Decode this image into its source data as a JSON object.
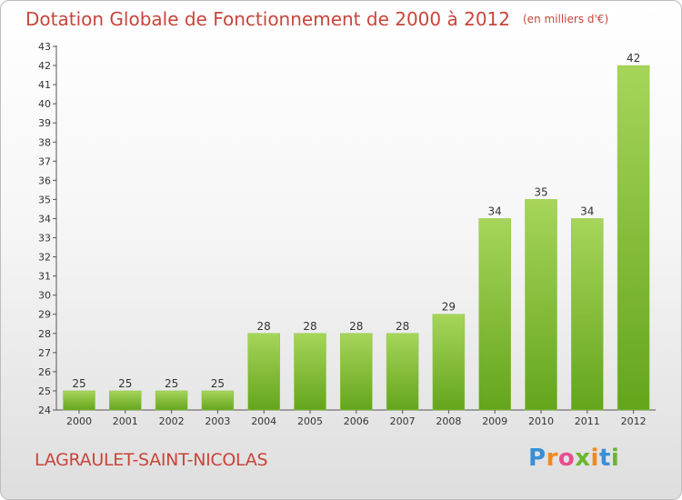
{
  "header": {
    "title": "Dotation Globale de Fonctionnement de 2000 à 2012",
    "subtitle": "(en milliers d'€)"
  },
  "footer": {
    "commune": "LAGRAULET-SAINT-NICOLAS",
    "logo_text": "Proxiti",
    "logo_letters": [
      {
        "ch": "P",
        "color": "#3a8fd6"
      },
      {
        "ch": "r",
        "color": "#f08a1c"
      },
      {
        "ch": "o",
        "color": "#e84c8f"
      },
      {
        "ch": "x",
        "color": "#6bb52f"
      },
      {
        "ch": "i",
        "color": "#f08a1c"
      },
      {
        "ch": "t",
        "color": "#3a8fd6"
      },
      {
        "ch": "i",
        "color": "#6bb52f"
      }
    ]
  },
  "colors": {
    "accent_text": "#c8453b",
    "bar_top": "#a6d55a",
    "bar_bottom": "#64a51c"
  },
  "chart_data": {
    "type": "bar",
    "title": "Dotation Globale de Fonctionnement de 2000 à 2012",
    "subtitle": "(en milliers d'€)",
    "categories": [
      "2000",
      "2001",
      "2002",
      "2003",
      "2004",
      "2005",
      "2006",
      "2007",
      "2008",
      "2009",
      "2010",
      "2011",
      "2012"
    ],
    "values": [
      25,
      25,
      25,
      25,
      28,
      28,
      28,
      28,
      29,
      34,
      35,
      34,
      42
    ],
    "ylim": [
      24,
      43
    ],
    "yticks": [
      24,
      25,
      26,
      27,
      28,
      29,
      30,
      31,
      32,
      33,
      34,
      35,
      36,
      37,
      38,
      39,
      40,
      41,
      42,
      43
    ],
    "grid": false,
    "data_labels": true
  }
}
